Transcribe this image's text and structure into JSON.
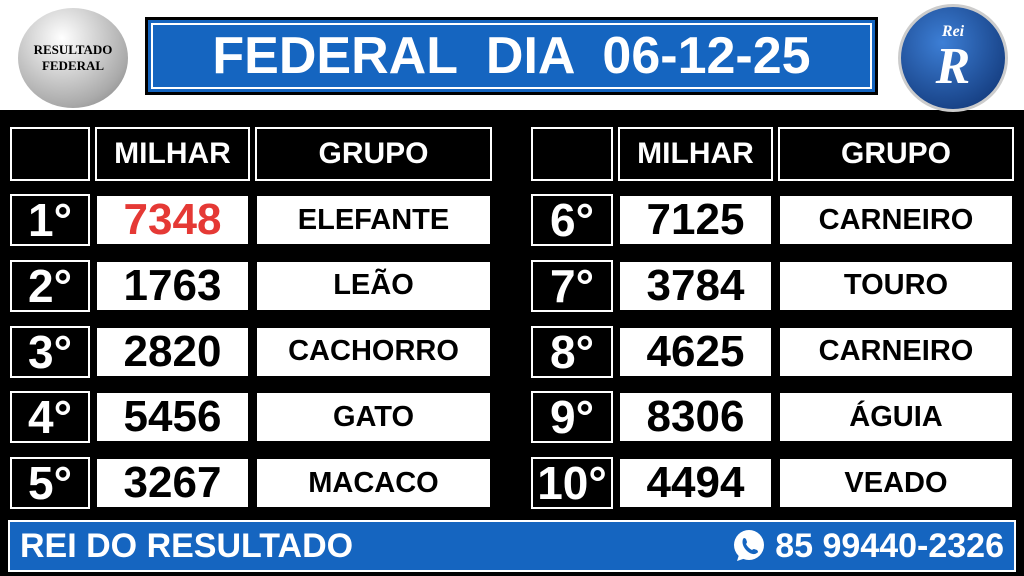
{
  "header": {
    "title": "FEDERAL  DIA  06-12-25",
    "left_logo": [
      "RESULTADO",
      "FEDERAL"
    ],
    "right_logo": [
      "Rei",
      "R"
    ]
  },
  "tables": [
    {
      "columns": [
        "MILHAR",
        "GRUPO"
      ],
      "rows": [
        {
          "position": "1°",
          "milhar": "7348",
          "grupo": "ELEFANTE"
        },
        {
          "position": "2°",
          "milhar": "1763",
          "grupo": "LEÃO"
        },
        {
          "position": "3°",
          "milhar": "2820",
          "grupo": "CACHORRO"
        },
        {
          "position": "4°",
          "milhar": "5456",
          "grupo": "GATO"
        },
        {
          "position": "5°",
          "milhar": "3267",
          "grupo": "MACACO"
        }
      ]
    },
    {
      "columns": [
        "MILHAR",
        "GRUPO"
      ],
      "rows": [
        {
          "position": "6°",
          "milhar": "7125",
          "grupo": "CARNEIRO"
        },
        {
          "position": "7°",
          "milhar": "3784",
          "grupo": "TOURO"
        },
        {
          "position": "8°",
          "milhar": "4625",
          "grupo": "CARNEIRO"
        },
        {
          "position": "9°",
          "milhar": "8306",
          "grupo": "ÁGUIA"
        },
        {
          "position": "10°",
          "milhar": "4494",
          "grupo": "VEADO"
        }
      ]
    }
  ],
  "footer": {
    "brand": "REI DO RESULTADO",
    "phone": "85 99440-2326"
  }
}
